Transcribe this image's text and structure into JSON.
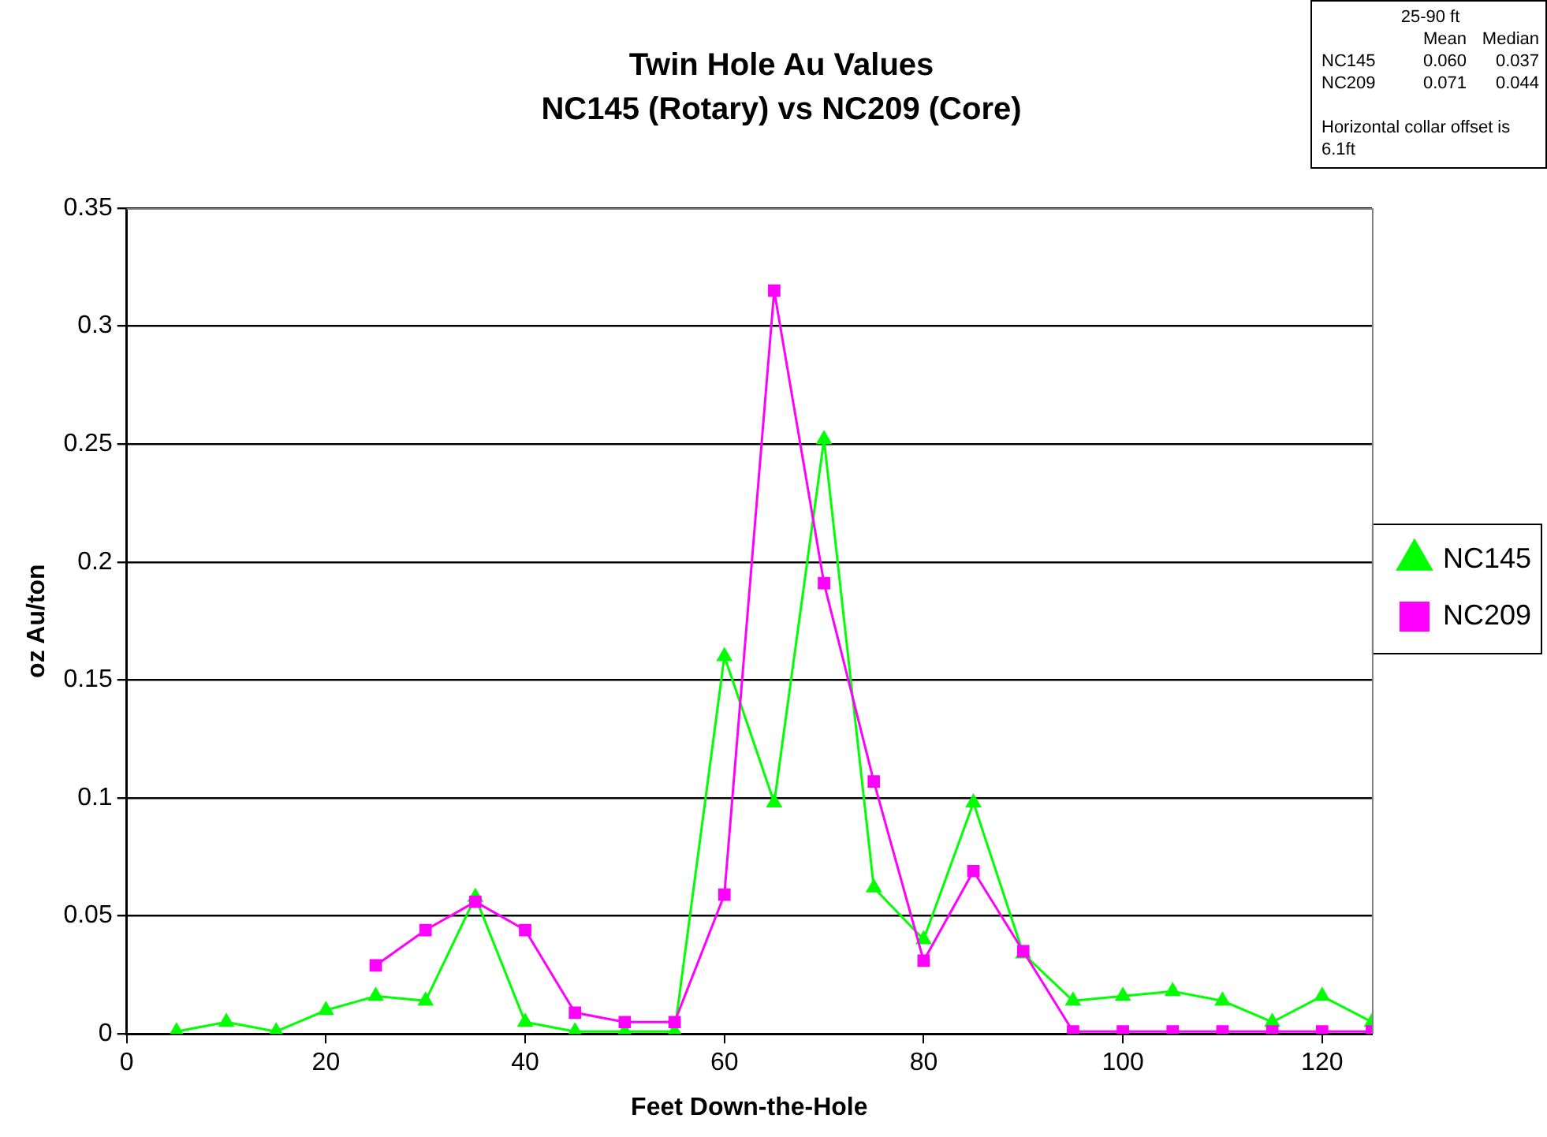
{
  "chart_data": {
    "type": "line",
    "title": "Twin Hole Au Values",
    "subtitle": "NC145 (Rotary) vs NC209 (Core)",
    "xlabel": "Feet Down-the-Hole",
    "ylabel": "oz Au/ton",
    "series": [
      {
        "name": "NC145",
        "color": "#00ff00",
        "marker": "triangle",
        "x": [
          5,
          10,
          15,
          20,
          25,
          30,
          35,
          40,
          45,
          50,
          55,
          60,
          65,
          70,
          75,
          80,
          85,
          90,
          95,
          100,
          105,
          110,
          115,
          120,
          125
        ],
        "values": [
          0.001,
          0.005,
          0.001,
          0.01,
          0.016,
          0.014,
          0.058,
          0.005,
          0.001,
          0.001,
          0.001,
          0.16,
          0.098,
          0.252,
          0.062,
          0.04,
          0.098,
          0.034,
          0.014,
          0.016,
          0.018,
          0.014,
          0.005,
          0.016,
          0.005
        ]
      },
      {
        "name": "NC209",
        "color": "#ff00ff",
        "marker": "square",
        "x": [
          25,
          30,
          35,
          40,
          45,
          50,
          55,
          60,
          65,
          70,
          75,
          80,
          85,
          90,
          95,
          100,
          105,
          110,
          115,
          120,
          125
        ],
        "values": [
          0.029,
          0.044,
          0.056,
          0.044,
          0.009,
          0.005,
          0.005,
          0.059,
          0.315,
          0.191,
          0.107,
          0.031,
          0.069,
          0.035,
          0.001,
          0.001,
          0.001,
          0.001,
          0.001,
          0.001,
          0.001
        ]
      }
    ],
    "xlim": [
      0,
      125
    ],
    "xticks": [
      0,
      20,
      40,
      60,
      80,
      100,
      120
    ],
    "ylim": [
      0,
      0.35
    ],
    "yticks": [
      0,
      0.05,
      0.1,
      0.15,
      0.2,
      0.25,
      0.3,
      0.35
    ],
    "grid": "y",
    "legend": "right",
    "line_style": "solid",
    "annotations": [
      "25-90 ft",
      "Mean\tMedian",
      "NC145\t0.060\t0.037",
      "NC209\t0.071\t0.044",
      "Horizontal collar offset is 6.1ft"
    ]
  }
}
